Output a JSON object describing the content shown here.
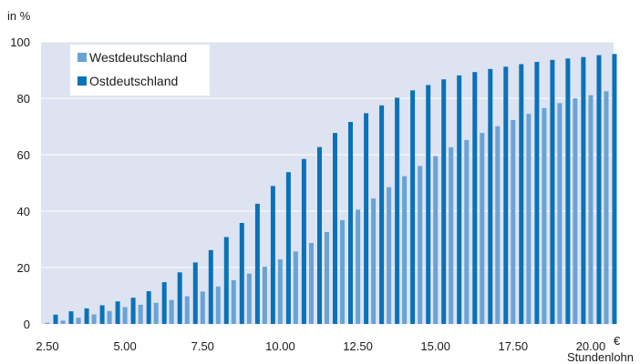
{
  "chart_data": {
    "type": "bar",
    "ylabel": "in %",
    "xlabel": "Stundenlohn",
    "xunit": "€",
    "ylim": [
      0,
      100
    ],
    "yticks": [
      0,
      20,
      40,
      60,
      80,
      100
    ],
    "xtick_labels": [
      "2.50",
      "5.00",
      "7.50",
      "10.00",
      "12.50",
      "15.00",
      "17.50",
      "20.00"
    ],
    "grid": true,
    "legend_position": "top-left",
    "categories": [
      "2.50",
      "3.00",
      "3.50",
      "4.00",
      "4.50",
      "5.00",
      "5.50",
      "6.00",
      "6.50",
      "7.00",
      "7.50",
      "8.00",
      "8.50",
      "9.00",
      "9.50",
      "10.00",
      "10.50",
      "11.00",
      "11.50",
      "12.00",
      "12.50",
      "13.00",
      "13.50",
      "14.00",
      "14.50",
      "15.00",
      "15.50",
      "16.00",
      "16.50",
      "17.00",
      "17.50",
      "18.00",
      "18.50",
      "19.00",
      "19.50",
      "20.00",
      "20.50"
    ],
    "series": [
      {
        "name": "Westdeutschland",
        "color": "#6aa3d5",
        "values": [
          0.4,
          1.2,
          2.2,
          3.4,
          4.6,
          6.0,
          6.8,
          7.5,
          8.5,
          9.8,
          11.5,
          13.3,
          15.5,
          17.8,
          20.3,
          22.9,
          25.7,
          28.7,
          32.6,
          36.8,
          40.5,
          44.5,
          48.5,
          52.4,
          56.0,
          59.5,
          62.6,
          65.2,
          67.7,
          70.1,
          72.3,
          74.5,
          76.5,
          78.3,
          80.0,
          81.1,
          82.5
        ]
      },
      {
        "name": "Ostdeutschland",
        "color": "#0a72b8",
        "values": [
          3.3,
          4.5,
          5.5,
          6.6,
          8.0,
          9.3,
          11.6,
          14.8,
          18.3,
          21.8,
          26.2,
          30.8,
          35.8,
          42.6,
          48.9,
          53.8,
          58.5,
          62.7,
          67.7,
          71.6,
          74.7,
          77.5,
          80.2,
          82.8,
          84.7,
          86.7,
          88.1,
          89.3,
          90.4,
          91.2,
          92.1,
          92.9,
          93.6,
          94.1,
          94.6,
          95.3,
          95.7
        ]
      }
    ]
  },
  "colors": {
    "plot_background": "#dde3f0",
    "grid": "#ffffff",
    "west": "#6aa3d5",
    "east": "#0a72b8"
  }
}
